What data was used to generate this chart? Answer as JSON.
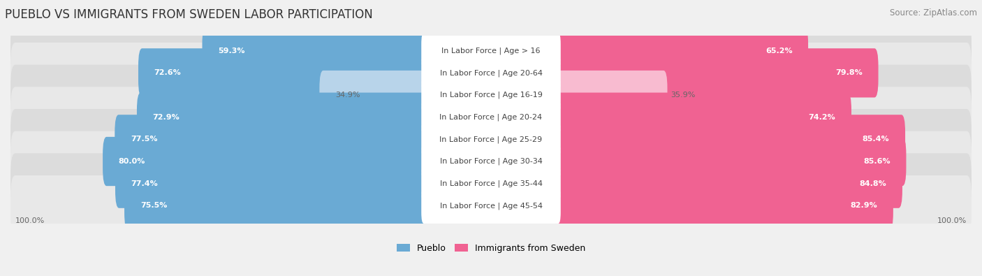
{
  "title": "PUEBLO VS IMMIGRANTS FROM SWEDEN LABOR PARTICIPATION",
  "source": "Source: ZipAtlas.com",
  "categories": [
    "In Labor Force | Age > 16",
    "In Labor Force | Age 20-64",
    "In Labor Force | Age 16-19",
    "In Labor Force | Age 20-24",
    "In Labor Force | Age 25-29",
    "In Labor Force | Age 30-34",
    "In Labor Force | Age 35-44",
    "In Labor Force | Age 45-54"
  ],
  "pueblo_values": [
    59.3,
    72.6,
    34.9,
    72.9,
    77.5,
    80.0,
    77.4,
    75.5
  ],
  "sweden_values": [
    65.2,
    79.8,
    35.9,
    74.2,
    85.4,
    85.6,
    84.8,
    82.9
  ],
  "pueblo_color_full": "#6aaad4",
  "pueblo_color_light": "#b8d4ea",
  "sweden_color_full": "#f06292",
  "sweden_color_light": "#f8bbd0",
  "bg_color": "#f0f0f0",
  "row_bg_dark": "#dcdcdc",
  "row_bg_light": "#e8e8e8",
  "max_value": 100.0,
  "title_fontsize": 12,
  "label_fontsize": 8.0,
  "value_fontsize": 8.0,
  "legend_fontsize": 9,
  "source_fontsize": 8.5,
  "axis_label_fontsize": 8
}
